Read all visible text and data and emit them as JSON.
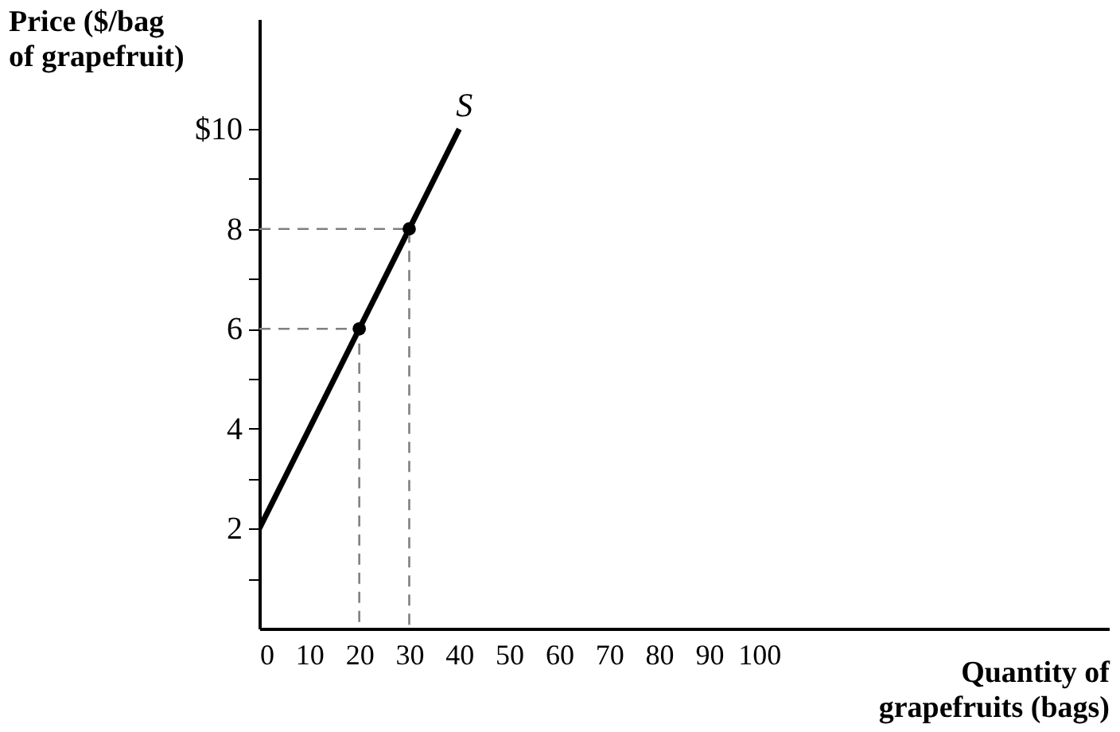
{
  "chart_data": {
    "type": "line",
    "xlabel": "Quantity of\ngrapefruits (bags)",
    "ylabel": "Price ($/bag\nof grapefruit)",
    "xlim": [
      0,
      170
    ],
    "ylim": [
      0,
      12.2
    ],
    "xticks": [
      0,
      10,
      20,
      30,
      40,
      50,
      60,
      70,
      80,
      90,
      100
    ],
    "yticks": [
      {
        "value": 1,
        "label": null
      },
      2,
      {
        "value": 3,
        "label": null
      },
      4,
      {
        "value": 5,
        "label": null
      },
      6,
      {
        "value": 7,
        "label": null
      },
      8,
      {
        "value": 9,
        "label": null
      },
      {
        "value": 10,
        "label": "$10"
      }
    ],
    "grid": false,
    "series": [
      {
        "name": "S",
        "color": "#000000",
        "x": [
          0,
          40
        ],
        "values": [
          2,
          10
        ]
      },
      {
        "line_style": "dashed",
        "color": "#808080",
        "x": [
          0,
          20,
          20
        ],
        "values": [
          6,
          6,
          0
        ]
      },
      {
        "line_style": "dashed",
        "color": "#808080",
        "x": [
          0,
          30,
          30
        ],
        "values": [
          8,
          8,
          0
        ]
      },
      {
        "type": "scatter",
        "marker": "circle",
        "color": "#000000",
        "x": [
          20,
          30
        ],
        "values": [
          6,
          8
        ]
      }
    ]
  }
}
